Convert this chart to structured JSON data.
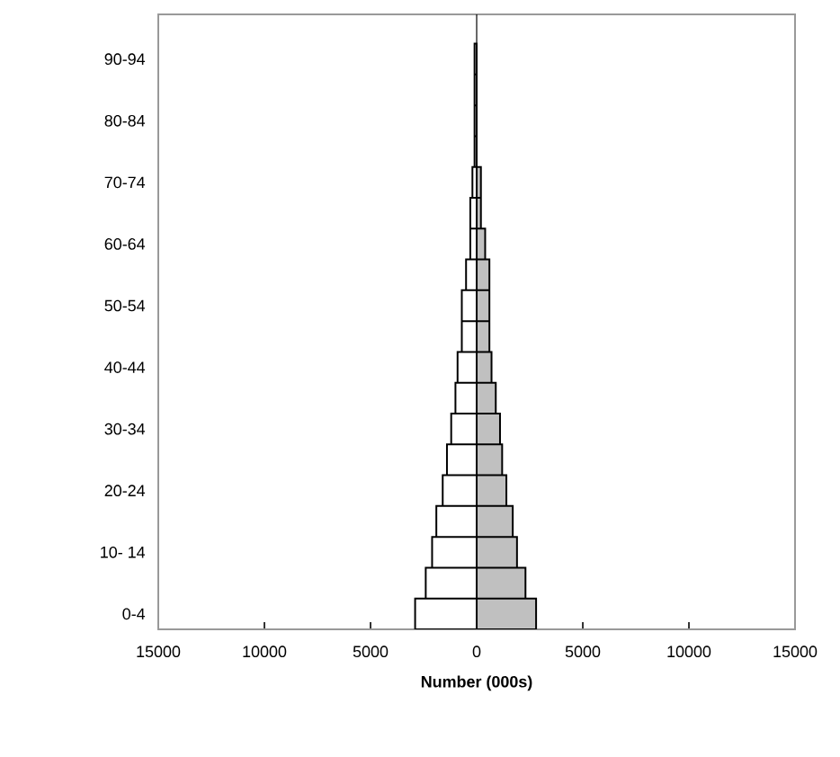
{
  "chart_data": {
    "type": "bar",
    "orientation": "horizontal",
    "stacked": true,
    "xlabel": "Number (000s)",
    "categories": [
      "90-94",
      null,
      "80-84",
      null,
      "70-74",
      null,
      "60-64",
      null,
      "50-54",
      null,
      "40-44",
      null,
      "30-34",
      null,
      "20-24",
      null,
      "10- 14",
      null,
      "0-4"
    ],
    "series": [
      {
        "color": "#ffffff",
        "values": [
          -100,
          -100,
          -100,
          -100,
          -200,
          -300,
          -300,
          -500,
          -700,
          -700,
          -900,
          -1000,
          -1200,
          -1400,
          -1600,
          -1900,
          -2100,
          -2400,
          -2900
        ]
      },
      {
        "color": "#c0c0c0",
        "values": [
          null,
          null,
          null,
          null,
          200,
          200,
          400,
          600,
          600,
          600,
          700,
          900,
          1100,
          1200,
          1400,
          1700,
          1900,
          2300,
          2800
        ]
      }
    ],
    "xlim": [
      -15000,
      15000
    ],
    "xticks": [
      {
        "value": -15000,
        "label": "15000"
      },
      {
        "value": -10000,
        "label": "10000"
      },
      {
        "value": -5000,
        "label": "5000"
      },
      0,
      5000,
      10000,
      15000
    ],
    "ref_lines": [
      {
        "axis": "x",
        "value": 0
      }
    ],
    "grid": false
  }
}
